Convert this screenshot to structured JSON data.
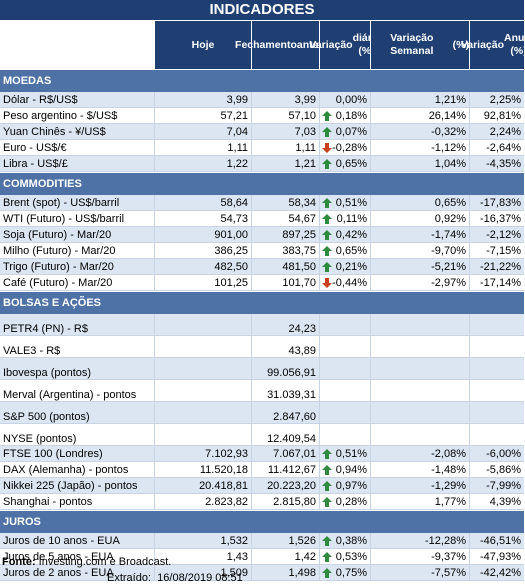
{
  "title": "INDICADORES",
  "headers": [
    "",
    "Hoje",
    "Fechamento anterior",
    "Variação diária (%)",
    "Variação Semanal (%)",
    "Variação Anual (%)"
  ],
  "header_lines": {
    "h2": [
      "Fechamento",
      "anterior"
    ],
    "h3": [
      "Variação",
      "diária (%)"
    ],
    "h4": [
      "Variação Semanal",
      "(%)"
    ],
    "h5": [
      "Variação",
      "Anual (%)"
    ]
  },
  "colors": {
    "header_bg": "#1f3f73",
    "section_bg": "#4e72a6",
    "row_alt": "#dce6f2",
    "up": "#2e8b3e",
    "down": "#c9401f"
  },
  "sections": [
    {
      "name": "MOEDAS",
      "rows": [
        {
          "label": "Dólar - R$/US$",
          "hoje": "3,99",
          "fech": "3,99",
          "dia": "0,00%",
          "dir": "",
          "sem": "1,21%",
          "ano": "2,25%"
        },
        {
          "label": "Peso argentino - $/US$",
          "hoje": "57,21",
          "fech": "57,10",
          "dia": "0,18%",
          "dir": "up",
          "sem": "26,14%",
          "ano": "92,81%"
        },
        {
          "label": "Yuan Chinês - ¥/US$",
          "hoje": "7,04",
          "fech": "7,03",
          "dia": "0,07%",
          "dir": "up",
          "sem": "-0,32%",
          "ano": "2,24%"
        },
        {
          "label": "Euro - US$/€",
          "hoje": "1,11",
          "fech": "1,11",
          "dia": "-0,28%",
          "dir": "down",
          "sem": "-1,12%",
          "ano": "-2,64%"
        },
        {
          "label": "Libra - US$/£",
          "hoje": "1,22",
          "fech": "1,21",
          "dia": "0,65%",
          "dir": "up",
          "sem": "1,04%",
          "ano": "-4,35%"
        }
      ]
    },
    {
      "name": "COMMODITIES",
      "rows": [
        {
          "label": "Brent (spot) - US$/barril",
          "hoje": "58,64",
          "fech": "58,34",
          "dia": "0,51%",
          "dir": "up",
          "sem": "0,65%",
          "ano": "-17,83%"
        },
        {
          "label": "WTI (Futuro) - US$/barril",
          "hoje": "54,73",
          "fech": "54,67",
          "dia": "0,11%",
          "dir": "up",
          "sem": "0,92%",
          "ano": "-16,37%"
        },
        {
          "label": "Soja (Futuro) - Mar/20",
          "hoje": "901,00",
          "fech": "897,25",
          "dia": "0,42%",
          "dir": "up",
          "sem": "-1,74%",
          "ano": "-2,12%"
        },
        {
          "label": "Milho (Futuro) - Mar/20",
          "hoje": "386,25",
          "fech": "383,75",
          "dia": "0,65%",
          "dir": "up",
          "sem": "-9,70%",
          "ano": "-7,15%"
        },
        {
          "label": "Trigo (Futuro) - Mar/20",
          "hoje": "482,50",
          "fech": "481,50",
          "dia": "0,21%",
          "dir": "up",
          "sem": "-5,21%",
          "ano": "-21,22%"
        },
        {
          "label": "Café (Futuro) - Mar/20",
          "hoje": "101,25",
          "fech": "101,70",
          "dia": "-0,44%",
          "dir": "down",
          "sem": "-2,97%",
          "ano": "-17,14%"
        }
      ]
    },
    {
      "name": "BOLSAS E AÇÕES",
      "rows": [
        {
          "label": "PETR4 (PN) - R$",
          "hoje": "",
          "fech": "24,23",
          "dia": "",
          "dir": "",
          "sem": "",
          "ano": ""
        },
        {
          "label": "VALE3 - R$",
          "hoje": "",
          "fech": "43,89",
          "dia": "",
          "dir": "",
          "sem": "",
          "ano": ""
        },
        {
          "label": "Ibovespa (pontos)",
          "hoje": "",
          "fech": "99.056,91",
          "dia": "",
          "dir": "",
          "sem": "",
          "ano": ""
        },
        {
          "label": "Merval (Argentina) - pontos",
          "hoje": "",
          "fech": "31.039,31",
          "dia": "",
          "dir": "",
          "sem": "",
          "ano": ""
        },
        {
          "label": "S&P 500 (pontos)",
          "hoje": "",
          "fech": "2.847,60",
          "dia": "",
          "dir": "",
          "sem": "",
          "ano": ""
        },
        {
          "label": "NYSE (pontos)",
          "hoje": "",
          "fech": "12.409,54",
          "dia": "",
          "dir": "",
          "sem": "",
          "ano": ""
        },
        {
          "label": "FTSE 100 (Londres)",
          "hoje": "7.102,93",
          "fech": "7.067,01",
          "dia": "0,51%",
          "dir": "up",
          "sem": "-2,08%",
          "ano": "-6,00%"
        },
        {
          "label": "DAX (Alemanha) - pontos",
          "hoje": "11.520,18",
          "fech": "11.412,67",
          "dia": "0,94%",
          "dir": "up",
          "sem": "-1,48%",
          "ano": "-5,86%"
        },
        {
          "label": "Nikkei 225 (Japão) - pontos",
          "hoje": "20.418,81",
          "fech": "20.223,20",
          "dia": "0,97%",
          "dir": "up",
          "sem": "-1,29%",
          "ano": "-7,99%"
        },
        {
          "label": "Shanghai - pontos",
          "hoje": "2.823,82",
          "fech": "2.815,80",
          "dia": "0,28%",
          "dir": "up",
          "sem": "1,77%",
          "ano": "4,39%"
        }
      ]
    },
    {
      "name": "JUROS",
      "rows": [
        {
          "label": "Juros de 10 anos - EUA",
          "hoje": "1,532",
          "fech": "1,526",
          "dia": "0,38%",
          "dir": "up",
          "sem": "-12,28%",
          "ano": "-46,51%"
        },
        {
          "label": "Juros de 5 anos - EUA",
          "hoje": "1,43",
          "fech": "1,42",
          "dia": "0,53%",
          "dir": "up",
          "sem": "-9,37%",
          "ano": "-47,93%"
        },
        {
          "label": "Juros de 2 anos - EUA",
          "hoje": "1,509",
          "fech": "1,498",
          "dia": "0,75%",
          "dir": "up",
          "sem": "-7,57%",
          "ano": "-42,42%"
        }
      ]
    }
  ],
  "footer": {
    "source_label": "Fonte:",
    "source_text": " Investing.com e Broadcast.",
    "extract_label": "Extraído:",
    "extract_value": "16/08/2019 08:51"
  }
}
